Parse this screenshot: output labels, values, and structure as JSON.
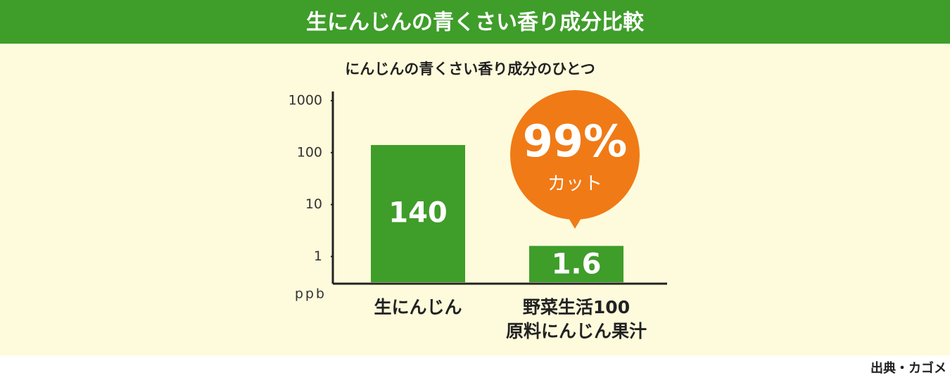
{
  "header": {
    "title": "生にんじんの青くさい香り成分比較"
  },
  "chart_data": {
    "type": "bar",
    "subtitle": "にんじんの青くさい香り成分のひとつ",
    "categories": [
      "生にんじん",
      "野菜生活100\n原料にんじん果汁"
    ],
    "values": [
      140,
      1.6
    ],
    "color": "#3f9d2a",
    "ylim": [
      0.3,
      1500
    ],
    "yticks": [
      1,
      10,
      100,
      1000
    ],
    "log_scale": true,
    "y_unit": "ppb",
    "annotation": {
      "value": "99%",
      "text": "カット",
      "color": "#f07a16"
    }
  },
  "source": "出典・カゴメ"
}
